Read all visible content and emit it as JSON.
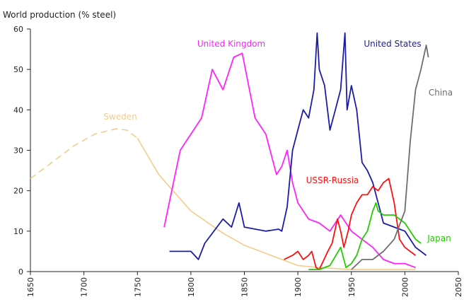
{
  "chart_data": {
    "type": "line",
    "ylabel": "World production (% steel)",
    "xlim": [
      1650,
      2050
    ],
    "xticks": [
      1650,
      1700,
      1750,
      1800,
      1850,
      1900,
      1950,
      2000,
      2050
    ],
    "ylim": [
      0,
      60
    ],
    "yticks": [
      0,
      10,
      20,
      30,
      40,
      50,
      60
    ],
    "grid": false,
    "series": [
      {
        "name": "Sweden",
        "color": "#f2cd8c",
        "dashed_before": 1750,
        "x": [
          1650,
          1670,
          1690,
          1710,
          1730,
          1740,
          1750,
          1770,
          1800,
          1830,
          1850,
          1870,
          1900,
          1920,
          1950,
          1980,
          2010
        ],
        "values": [
          23,
          27,
          31,
          34,
          35.3,
          35,
          33,
          24,
          15,
          9.5,
          6.5,
          4.5,
          1.5,
          1,
          0.5,
          0.5,
          0.5
        ]
      },
      {
        "name": "United Kingdom",
        "color": "#ff22ff",
        "x": [
          1775,
          1790,
          1810,
          1820,
          1830,
          1840,
          1848,
          1860,
          1870,
          1880,
          1885,
          1890,
          1895,
          1900,
          1910,
          1920,
          1930,
          1940,
          1950,
          1960,
          1970,
          1980,
          1990,
          2000,
          2010
        ],
        "values": [
          11,
          30,
          38,
          50,
          45,
          53,
          54,
          38,
          34,
          24,
          26,
          30,
          22,
          17,
          13,
          12,
          10,
          14,
          10,
          8,
          6,
          3,
          2,
          2,
          1
        ]
      },
      {
        "name": "United States",
        "color": "#1c1ca6",
        "x": [
          1780,
          1800,
          1807,
          1813,
          1830,
          1838,
          1845,
          1850,
          1870,
          1882,
          1885,
          1890,
          1895,
          1900,
          1905,
          1910,
          1915,
          1918,
          1920,
          1925,
          1930,
          1935,
          1940,
          1944,
          1946,
          1950,
          1955,
          1960,
          1965,
          1970,
          1975,
          1980,
          1990,
          2000,
          2010,
          2020
        ],
        "values": [
          5,
          5,
          3,
          7,
          13,
          11,
          17,
          11,
          10,
          10.5,
          10,
          16,
          30,
          35,
          40,
          38,
          45,
          59,
          50,
          46,
          35,
          40,
          45,
          59,
          40,
          46,
          40,
          27,
          25,
          22,
          17,
          12,
          11,
          10,
          6,
          4
        ]
      },
      {
        "name": "USSR-Russia",
        "color": "#ff1010",
        "x": [
          1887,
          1895,
          1900,
          1905,
          1910,
          1913,
          1917,
          1920,
          1928,
          1932,
          1937,
          1940,
          1943,
          1947,
          1950,
          1955,
          1960,
          1965,
          1970,
          1975,
          1980,
          1985,
          1990,
          1995,
          2000,
          2010
        ],
        "values": [
          3,
          4,
          5,
          3,
          4,
          5,
          1,
          0.5,
          5,
          7,
          13,
          10,
          6,
          10,
          14,
          17,
          19,
          19,
          21,
          20,
          22,
          23,
          17,
          8,
          6,
          4
        ]
      },
      {
        "name": "Japan",
        "color": "#22cc00",
        "x": [
          1910,
          1920,
          1930,
          1940,
          1945,
          1950,
          1955,
          1960,
          1965,
          1970,
          1973,
          1975,
          1980,
          1990,
          1995,
          2000,
          2005,
          2010,
          2015
        ],
        "values": [
          0.5,
          0.5,
          1.5,
          6,
          1,
          2,
          4,
          8,
          10,
          15,
          17,
          15,
          14,
          14,
          13,
          12,
          10,
          8,
          7
        ]
      },
      {
        "name": "China",
        "color": "#6e6e6e",
        "x": [
          1950,
          1960,
          1970,
          1980,
          1990,
          2000,
          2005,
          2010,
          2015,
          2020,
          2022
        ],
        "values": [
          0.5,
          3,
          3,
          5,
          8,
          15,
          32,
          45,
          50,
          56,
          53
        ]
      }
    ]
  }
}
